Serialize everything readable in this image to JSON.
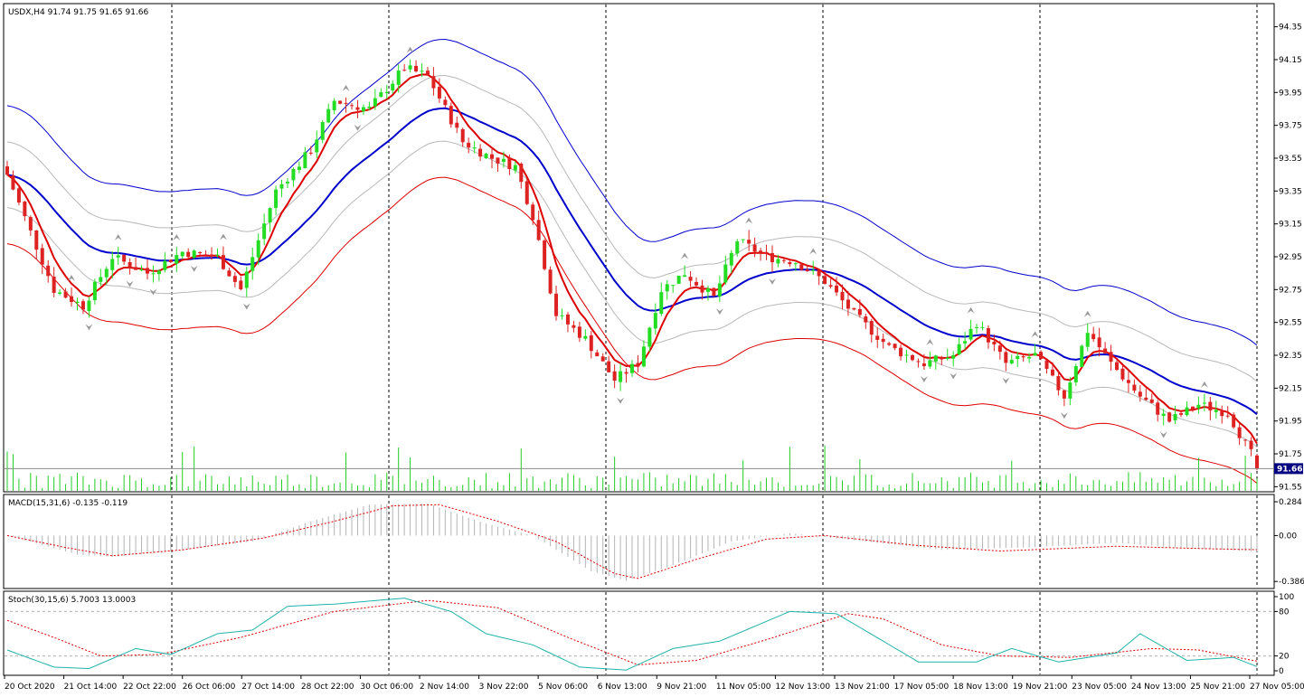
{
  "colors": {
    "background": "#ffffff",
    "bull_candle": "#22dd22",
    "bear_candle": "#dd2222",
    "volume": "#22cc22",
    "ma_fast": "#dd0000",
    "ma_mid": "#0000cc",
    "upper_band": "#0000cc",
    "lower_band": "#dd0000",
    "inner_band": "#b8b8b8",
    "macd_hist": "#b4b4b4",
    "macd_signal": "#dd0000",
    "stoch_main": "#20b2aa",
    "stoch_signal": "#dd0000",
    "price_tag_bg": "#000080",
    "fractal_arrow": "#999999"
  },
  "chart_data": [
    {
      "type": "candlestick",
      "title": "USDX,H4  91.74 91.75 91.65 91.66",
      "symbol": "USDX",
      "timeframe": "H4",
      "ohlc_last": {
        "open": 91.74,
        "high": 91.75,
        "low": 91.65,
        "close": 91.66
      },
      "current_price_label": "91.66",
      "y_ticks": [
        "94.35",
        "94.15",
        "93.95",
        "93.75",
        "93.55",
        "93.35",
        "93.15",
        "92.95",
        "92.75",
        "92.55",
        "92.35",
        "92.15",
        "91.95",
        "91.75",
        "91.55"
      ],
      "ylim": [
        91.53,
        94.48
      ],
      "x_labels": [
        "20 Oct 2020",
        "21 Oct 14:00",
        "22 Oct 22:00",
        "26 Oct 06:00",
        "27 Oct 14:00",
        "28 Oct 22:00",
        "30 Oct 06:00",
        "2 Nov 14:00",
        "3 Nov 22:00",
        "5 Nov 06:00",
        "6 Nov 13:00",
        "9 Nov 21:00",
        "11 Nov 05:00",
        "12 Nov 13:00",
        "13 Nov 21:00",
        "17 Nov 05:00",
        "18 Nov 13:00",
        "19 Nov 21:00",
        "23 Nov 05:00",
        "24 Nov 13:00",
        "25 Nov 21:00",
        "27 Nov 05:00"
      ],
      "price_anchors": [
        {
          "bar": 0,
          "price": 93.45
        },
        {
          "bar": 8,
          "price": 92.75
        },
        {
          "bar": 13,
          "price": 92.65
        },
        {
          "bar": 18,
          "price": 92.95
        },
        {
          "bar": 24,
          "price": 92.85
        },
        {
          "bar": 30,
          "price": 92.98
        },
        {
          "bar": 36,
          "price": 92.95
        },
        {
          "bar": 40,
          "price": 92.75
        },
        {
          "bar": 46,
          "price": 93.35
        },
        {
          "bar": 52,
          "price": 93.6
        },
        {
          "bar": 56,
          "price": 93.9
        },
        {
          "bar": 62,
          "price": 93.85
        },
        {
          "bar": 68,
          "price": 94.1
        },
        {
          "bar": 72,
          "price": 94.05
        },
        {
          "bar": 78,
          "price": 93.65
        },
        {
          "bar": 83,
          "price": 93.55
        },
        {
          "bar": 87,
          "price": 93.5
        },
        {
          "bar": 90,
          "price": 93.2
        },
        {
          "bar": 94,
          "price": 92.6
        },
        {
          "bar": 99,
          "price": 92.45
        },
        {
          "bar": 104,
          "price": 92.2
        },
        {
          "bar": 108,
          "price": 92.3
        },
        {
          "bar": 112,
          "price": 92.75
        },
        {
          "bar": 116,
          "price": 92.85
        },
        {
          "bar": 121,
          "price": 92.7
        },
        {
          "bar": 125,
          "price": 93.05
        },
        {
          "bar": 130,
          "price": 92.95
        },
        {
          "bar": 135,
          "price": 92.92
        },
        {
          "bar": 140,
          "price": 92.8
        },
        {
          "bar": 145,
          "price": 92.6
        },
        {
          "bar": 151,
          "price": 92.4
        },
        {
          "bar": 157,
          "price": 92.3
        },
        {
          "bar": 162,
          "price": 92.35
        },
        {
          "bar": 166,
          "price": 92.55
        },
        {
          "bar": 171,
          "price": 92.3
        },
        {
          "bar": 176,
          "price": 92.35
        },
        {
          "bar": 181,
          "price": 92.1
        },
        {
          "bar": 185,
          "price": 92.5
        },
        {
          "bar": 189,
          "price": 92.3
        },
        {
          "bar": 194,
          "price": 92.1
        },
        {
          "bar": 199,
          "price": 91.95
        },
        {
          "bar": 204,
          "price": 92.05
        },
        {
          "bar": 209,
          "price": 92.0
        },
        {
          "bar": 213,
          "price": 91.75
        },
        {
          "bar": 214,
          "price": 91.66
        }
      ],
      "bar_count": 215
    },
    {
      "type": "histogram+line",
      "title": "MACD(15,31,6) -0.135 -0.119",
      "y_ticks": [
        "0.284",
        "0.00",
        "-0.386"
      ],
      "ylim": [
        -0.43,
        0.33
      ],
      "hist_anchors": [
        {
          "bar": 0,
          "value": 0.0
        },
        {
          "bar": 12,
          "value": -0.16
        },
        {
          "bar": 18,
          "value": -0.18
        },
        {
          "bar": 30,
          "value": -0.12
        },
        {
          "bar": 42,
          "value": -0.05
        },
        {
          "bar": 52,
          "value": 0.12
        },
        {
          "bar": 62,
          "value": 0.26
        },
        {
          "bar": 72,
          "value": 0.27
        },
        {
          "bar": 82,
          "value": 0.1
        },
        {
          "bar": 90,
          "value": 0.0
        },
        {
          "bar": 100,
          "value": -0.3
        },
        {
          "bar": 106,
          "value": -0.38
        },
        {
          "bar": 114,
          "value": -0.25
        },
        {
          "bar": 124,
          "value": -0.05
        },
        {
          "bar": 134,
          "value": 0.02
        },
        {
          "bar": 145,
          "value": -0.04
        },
        {
          "bar": 160,
          "value": -0.12
        },
        {
          "bar": 175,
          "value": -0.1
        },
        {
          "bar": 190,
          "value": -0.06
        },
        {
          "bar": 200,
          "value": -0.1
        },
        {
          "bar": 214,
          "value": -0.135
        }
      ],
      "signal_anchors": [
        {
          "bar": 0,
          "value": 0.0
        },
        {
          "bar": 10,
          "value": -0.1
        },
        {
          "bar": 18,
          "value": -0.17
        },
        {
          "bar": 30,
          "value": -0.12
        },
        {
          "bar": 44,
          "value": -0.02
        },
        {
          "bar": 56,
          "value": 0.12
        },
        {
          "bar": 66,
          "value": 0.25
        },
        {
          "bar": 74,
          "value": 0.26
        },
        {
          "bar": 84,
          "value": 0.12
        },
        {
          "bar": 94,
          "value": -0.05
        },
        {
          "bar": 104,
          "value": -0.32
        },
        {
          "bar": 108,
          "value": -0.36
        },
        {
          "bar": 118,
          "value": -0.2
        },
        {
          "bar": 130,
          "value": -0.03
        },
        {
          "bar": 140,
          "value": 0.0
        },
        {
          "bar": 155,
          "value": -0.08
        },
        {
          "bar": 170,
          "value": -0.13
        },
        {
          "bar": 190,
          "value": -0.09
        },
        {
          "bar": 205,
          "value": -0.11
        },
        {
          "bar": 214,
          "value": -0.119
        }
      ]
    },
    {
      "type": "line",
      "title": "Stoch(30,15,6) 5.7003 13.0003",
      "y_ticks": [
        "100",
        "80",
        "20",
        "0"
      ],
      "ylim": [
        0,
        100
      ],
      "levels": [
        80,
        20
      ],
      "main_anchors": [
        {
          "bar": 0,
          "value": 28
        },
        {
          "bar": 8,
          "value": 5
        },
        {
          "bar": 14,
          "value": 3
        },
        {
          "bar": 22,
          "value": 30
        },
        {
          "bar": 28,
          "value": 22
        },
        {
          "bar": 36,
          "value": 50
        },
        {
          "bar": 42,
          "value": 55
        },
        {
          "bar": 48,
          "value": 87
        },
        {
          "bar": 56,
          "value": 90
        },
        {
          "bar": 68,
          "value": 98
        },
        {
          "bar": 76,
          "value": 80
        },
        {
          "bar": 82,
          "value": 50
        },
        {
          "bar": 90,
          "value": 35
        },
        {
          "bar": 98,
          "value": 5
        },
        {
          "bar": 106,
          "value": 1
        },
        {
          "bar": 114,
          "value": 30
        },
        {
          "bar": 122,
          "value": 40
        },
        {
          "bar": 134,
          "value": 80
        },
        {
          "bar": 142,
          "value": 77
        },
        {
          "bar": 150,
          "value": 40
        },
        {
          "bar": 156,
          "value": 12
        },
        {
          "bar": 166,
          "value": 12
        },
        {
          "bar": 172,
          "value": 30
        },
        {
          "bar": 180,
          "value": 12
        },
        {
          "bar": 190,
          "value": 24
        },
        {
          "bar": 194,
          "value": 50
        },
        {
          "bar": 202,
          "value": 14
        },
        {
          "bar": 210,
          "value": 18
        },
        {
          "bar": 214,
          "value": 5.7
        }
      ],
      "signal_anchors": [
        {
          "bar": 0,
          "value": 68
        },
        {
          "bar": 8,
          "value": 45
        },
        {
          "bar": 16,
          "value": 20
        },
        {
          "bar": 26,
          "value": 22
        },
        {
          "bar": 40,
          "value": 45
        },
        {
          "bar": 56,
          "value": 80
        },
        {
          "bar": 72,
          "value": 95
        },
        {
          "bar": 84,
          "value": 85
        },
        {
          "bar": 96,
          "value": 45
        },
        {
          "bar": 108,
          "value": 8
        },
        {
          "bar": 118,
          "value": 14
        },
        {
          "bar": 130,
          "value": 42
        },
        {
          "bar": 144,
          "value": 77
        },
        {
          "bar": 150,
          "value": 70
        },
        {
          "bar": 160,
          "value": 35
        },
        {
          "bar": 170,
          "value": 20
        },
        {
          "bar": 182,
          "value": 18
        },
        {
          "bar": 196,
          "value": 30
        },
        {
          "bar": 204,
          "value": 28
        },
        {
          "bar": 214,
          "value": 13
        }
      ]
    }
  ]
}
